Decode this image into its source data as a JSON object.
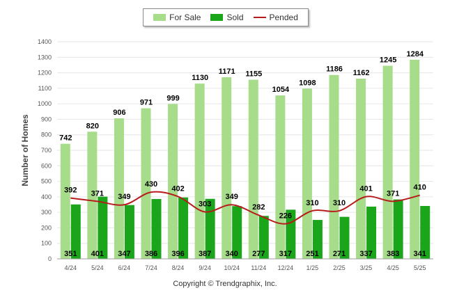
{
  "legend": {
    "for_sale": "For Sale",
    "sold": "Sold",
    "pended": "Pended"
  },
  "copyright": "Copyright © Trendgraphix, Inc.",
  "colors": {
    "for_sale": "#a6dc8a",
    "sold": "#1aa51a",
    "pended": "#b71c1c",
    "grid": "#e6e6e6"
  },
  "chart_data": {
    "type": "bar",
    "ylabel": "Number of Homes",
    "ylim": [
      0,
      1400
    ],
    "y_ticks": [
      0,
      100,
      200,
      300,
      400,
      500,
      600,
      700,
      800,
      900,
      1000,
      1100,
      1200,
      1300,
      1400
    ],
    "categories": [
      "4/24",
      "5/24",
      "6/24",
      "7/24",
      "8/24",
      "9/24",
      "10/24",
      "11/24",
      "12/24",
      "1/25",
      "2/25",
      "3/25",
      "4/25",
      "5/25"
    ],
    "series": [
      {
        "name": "For Sale",
        "kind": "bar",
        "values": [
          742,
          820,
          906,
          971,
          999,
          1130,
          1171,
          1155,
          1054,
          1098,
          1186,
          1162,
          1245,
          1284
        ]
      },
      {
        "name": "Sold",
        "kind": "bar",
        "values": [
          351,
          401,
          347,
          386,
          396,
          387,
          340,
          277,
          317,
          251,
          271,
          337,
          383,
          341
        ]
      },
      {
        "name": "Pended",
        "kind": "line",
        "values": [
          392,
          371,
          349,
          430,
          402,
          303,
          349,
          282,
          226,
          310,
          310,
          401,
          371,
          410
        ]
      }
    ],
    "grid": true,
    "legend_position": "top-center"
  }
}
